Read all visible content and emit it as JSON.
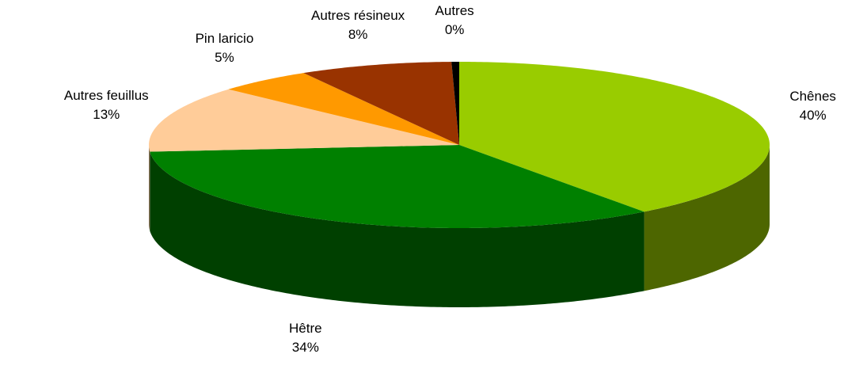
{
  "chart_data": {
    "type": "pie",
    "categories": [
      "Chênes",
      "Hêtre",
      "Autres feuillus",
      "Pin laricio",
      "Autres résineux",
      "Autres"
    ],
    "values": [
      40,
      34,
      13,
      5,
      8,
      0.4
    ],
    "value_labels": [
      "40%",
      "34%",
      "13%",
      "5%",
      "8%",
      "0%"
    ],
    "colors": [
      "#99cc00",
      "#008000",
      "#ffcc99",
      "#ff9900",
      "#993300",
      "#000000"
    ]
  }
}
